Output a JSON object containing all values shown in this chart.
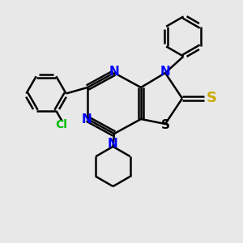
{
  "bg_color": "#e8e8e8",
  "bond_color": "#000000",
  "N_color": "#0000ff",
  "S_color": "#ccaa00",
  "Cl_color": "#00bb00",
  "line_width": 1.8,
  "figsize": [
    3.0,
    3.0
  ],
  "dpi": 100,
  "xlim": [
    0,
    10
  ],
  "ylim": [
    0,
    10
  ]
}
